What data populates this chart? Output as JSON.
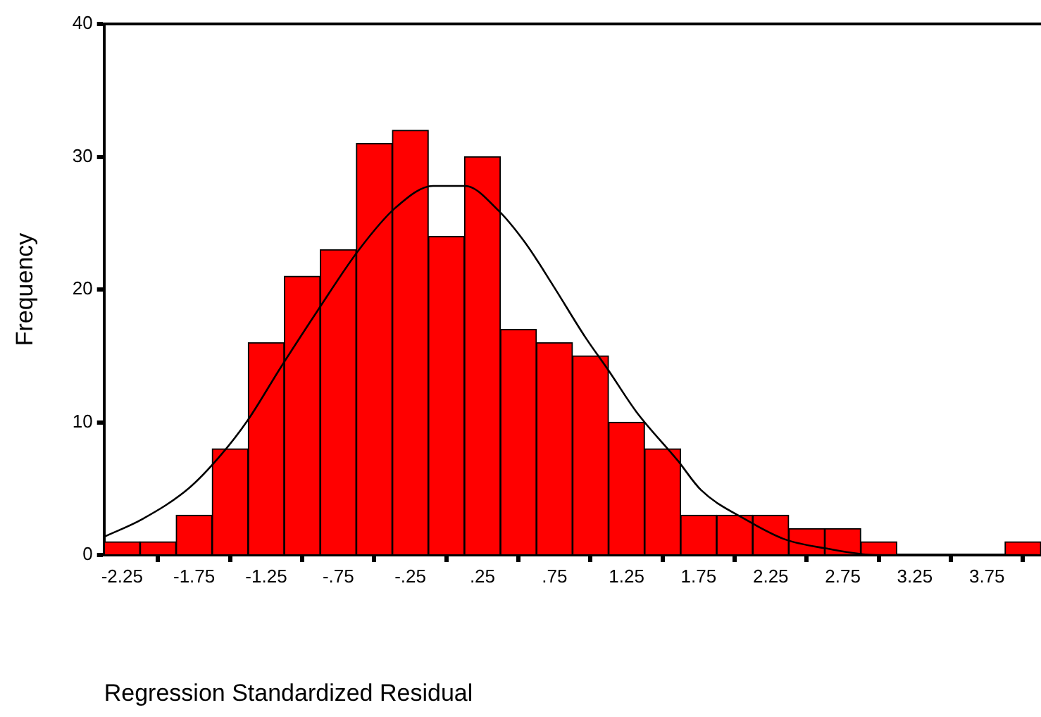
{
  "chart_data": {
    "type": "histogram",
    "xlabel": "Regression Standardized Residual",
    "ylabel": "Frequency",
    "bins": [
      -2.375,
      -2.125,
      -1.875,
      -1.625,
      -1.375,
      -1.125,
      -0.875,
      -0.625,
      -0.375,
      -0.125,
      0.125,
      0.375,
      0.625,
      0.875,
      1.125,
      1.375,
      1.625,
      1.875,
      2.125,
      2.375,
      2.625,
      2.875,
      3.125,
      3.375,
      3.625,
      3.875,
      4.125
    ],
    "series": [
      {
        "type": "histogram",
        "color": "#ff0000",
        "values": [
          1,
          1,
          3,
          8,
          16,
          21,
          23,
          31,
          32,
          24,
          30,
          17,
          16,
          15,
          10,
          8,
          3,
          3,
          3,
          2,
          2,
          1,
          0,
          0,
          0,
          1
        ]
      },
      {
        "type": "line",
        "color": "#000000",
        "x": [
          -2.369,
          -2.11,
          -1.79,
          -1.567,
          -1.375,
          -1.151,
          -0.894,
          -0.606,
          -0.349,
          -0.093,
          0.13,
          0.356,
          0.548,
          0.74,
          0.964,
          1.125,
          1.317,
          1.606,
          1.766,
          2.087,
          2.343,
          2.63,
          2.98,
          3.5,
          4.1
        ],
        "values": [
          1.4,
          2.7,
          5,
          7.5,
          10.2,
          14.1,
          18.4,
          23,
          26.2,
          27.8,
          27.8,
          26,
          23.5,
          20.3,
          16.4,
          13.9,
          10.8,
          7.1,
          4.9,
          2.6,
          1.2,
          0.5,
          0,
          0,
          0
        ]
      }
    ],
    "xlim": [
      -2.375,
      4.125
    ],
    "xticks": [
      -2.25,
      -1.75,
      -1.25,
      {
        "value": -0.75,
        "label": "-.75"
      },
      {
        "value": -0.25,
        "label": "-.25"
      },
      {
        "value": 0.25,
        "label": ".25"
      },
      {
        "value": 0.75,
        "label": ".75"
      },
      1.25,
      1.75,
      2.25,
      2.75,
      3.25,
      3.75
    ],
    "ylim": [
      0,
      40
    ],
    "yticks": [
      0,
      10,
      20,
      30,
      40
    ],
    "grid": false,
    "legend": false,
    "marker": "none"
  }
}
